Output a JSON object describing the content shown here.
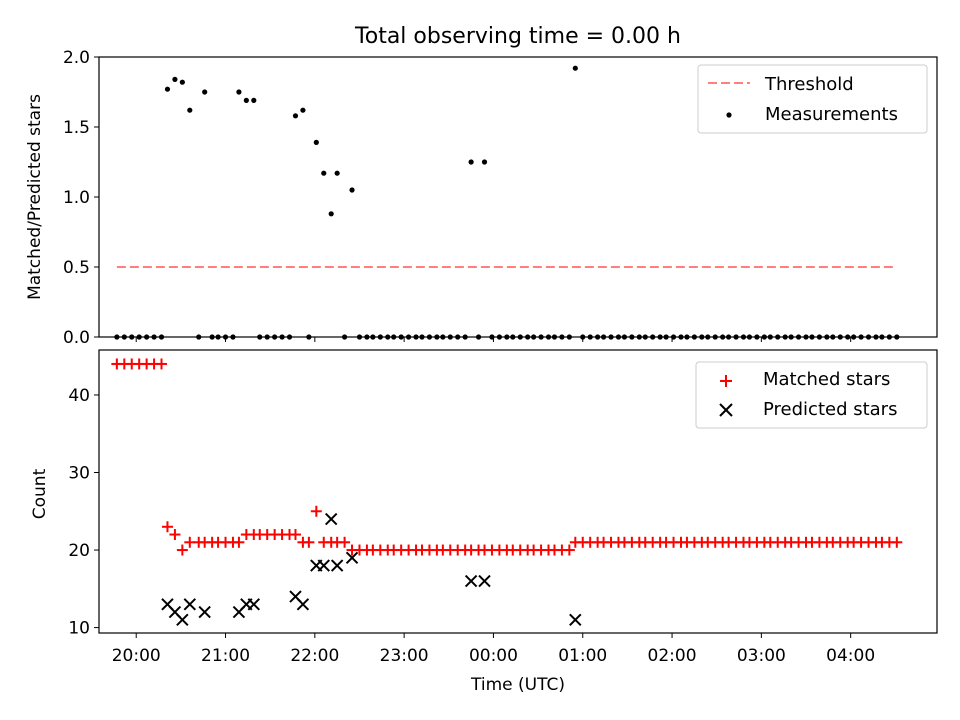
{
  "chart_data": [
    {
      "type": "scatter",
      "title": "Total observing time = 0.00 h",
      "xlabel": "",
      "ylabel": "Matched/Predicted stars",
      "xlim": [
        "19:35",
        "04:58"
      ],
      "ylim": [
        0,
        2.0
      ],
      "yticks": [
        "0.0",
        "0.5",
        "1.0",
        "1.5",
        "2.0"
      ],
      "legend": {
        "position": "top-right",
        "entries": [
          "Threshold",
          "Measurements"
        ]
      },
      "series": [
        {
          "name": "Threshold",
          "style": "dashed-line",
          "color": "#ff7f7f",
          "x": [
            "19:47",
            "04:31"
          ],
          "y": [
            0.5,
            0.5
          ]
        },
        {
          "name": "Measurements",
          "style": "dot",
          "color": "#000000",
          "points": [
            [
              "19:47",
              0
            ],
            [
              "19:52",
              0
            ],
            [
              "19:57",
              0
            ],
            [
              "20:02",
              0
            ],
            [
              "20:07",
              0
            ],
            [
              "20:12",
              0
            ],
            [
              "20:17",
              0
            ],
            [
              "20:21",
              1.77
            ],
            [
              "20:26",
              1.84
            ],
            [
              "20:31",
              1.82
            ],
            [
              "20:36",
              1.62
            ],
            [
              "20:42",
              0
            ],
            [
              "20:46",
              1.75
            ],
            [
              "20:51",
              0
            ],
            [
              "20:55",
              0
            ],
            [
              "21:00",
              0
            ],
            [
              "21:05",
              0
            ],
            [
              "21:09",
              1.75
            ],
            [
              "21:14",
              1.69
            ],
            [
              "21:19",
              1.69
            ],
            [
              "21:23",
              0
            ],
            [
              "21:28",
              0
            ],
            [
              "21:33",
              0
            ],
            [
              "21:38",
              0
            ],
            [
              "21:43",
              0
            ],
            [
              "21:47",
              1.58
            ],
            [
              "21:52",
              1.62
            ],
            [
              "21:56",
              0
            ],
            [
              "22:01",
              1.39
            ],
            [
              "22:06",
              1.17
            ],
            [
              "22:11",
              0.88
            ],
            [
              "22:15",
              1.17
            ],
            [
              "22:20",
              0
            ],
            [
              "22:25",
              1.05
            ],
            [
              "22:30",
              0
            ],
            [
              "22:35",
              0
            ],
            [
              "22:39",
              0
            ],
            [
              "22:44",
              0
            ],
            [
              "22:49",
              0
            ],
            [
              "22:53",
              0
            ],
            [
              "22:58",
              0
            ],
            [
              "23:03",
              0
            ],
            [
              "23:08",
              0
            ],
            [
              "23:12",
              0
            ],
            [
              "23:17",
              0
            ],
            [
              "23:22",
              0
            ],
            [
              "23:26",
              0
            ],
            [
              "23:31",
              0
            ],
            [
              "23:36",
              0
            ],
            [
              "23:41",
              0
            ],
            [
              "23:45",
              1.25
            ],
            [
              "23:50",
              0
            ],
            [
              "23:54",
              1.25
            ],
            [
              "23:59",
              0
            ],
            [
              "00:04",
              0
            ],
            [
              "00:09",
              0
            ],
            [
              "00:13",
              0
            ],
            [
              "00:18",
              0
            ],
            [
              "00:23",
              0
            ],
            [
              "00:27",
              0
            ],
            [
              "00:32",
              0
            ],
            [
              "00:37",
              0
            ],
            [
              "00:41",
              0
            ],
            [
              "00:46",
              0
            ],
            [
              "00:51",
              0
            ],
            [
              "00:55",
              1.92
            ],
            [
              "01:00",
              0
            ],
            [
              "01:05",
              0
            ],
            [
              "01:10",
              0
            ],
            [
              "01:14",
              0
            ],
            [
              "01:19",
              0
            ],
            [
              "01:24",
              0
            ],
            [
              "01:28",
              0
            ],
            [
              "01:33",
              0
            ],
            [
              "01:38",
              0
            ],
            [
              "01:42",
              0
            ],
            [
              "01:47",
              0
            ],
            [
              "01:52",
              0
            ],
            [
              "01:56",
              0
            ],
            [
              "02:01",
              0
            ],
            [
              "02:06",
              0
            ],
            [
              "02:10",
              0
            ],
            [
              "02:15",
              0
            ],
            [
              "02:20",
              0
            ],
            [
              "02:24",
              0
            ],
            [
              "02:29",
              0
            ],
            [
              "02:34",
              0
            ],
            [
              "02:38",
              0
            ],
            [
              "02:43",
              0
            ],
            [
              "02:48",
              0
            ],
            [
              "02:52",
              0
            ],
            [
              "02:57",
              0
            ],
            [
              "03:02",
              0
            ],
            [
              "03:06",
              0
            ],
            [
              "03:11",
              0
            ],
            [
              "03:16",
              0
            ],
            [
              "03:20",
              0
            ],
            [
              "03:25",
              0
            ],
            [
              "03:30",
              0
            ],
            [
              "03:34",
              0
            ],
            [
              "03:39",
              0
            ],
            [
              "03:44",
              0
            ],
            [
              "03:48",
              0
            ],
            [
              "03:53",
              0
            ],
            [
              "03:58",
              0
            ],
            [
              "04:02",
              0
            ],
            [
              "04:07",
              0
            ],
            [
              "04:12",
              0
            ],
            [
              "04:17",
              0
            ],
            [
              "04:21",
              0
            ],
            [
              "04:26",
              0
            ],
            [
              "04:31",
              0
            ]
          ]
        }
      ]
    },
    {
      "type": "scatter",
      "title": "",
      "xlabel": "Time (UTC)",
      "ylabel": "Count",
      "xlim": [
        "19:35",
        "04:58"
      ],
      "ylim": [
        9.3,
        45.8
      ],
      "xticks": [
        "20:00",
        "21:00",
        "22:00",
        "23:00",
        "00:00",
        "01:00",
        "02:00",
        "03:00",
        "04:00"
      ],
      "yticks": [
        "10",
        "20",
        "30",
        "40"
      ],
      "legend": {
        "position": "top-right",
        "entries": [
          "Matched stars",
          "Predicted stars"
        ]
      },
      "series": [
        {
          "name": "Matched stars",
          "marker": "plus",
          "color": "#ff0000",
          "points": [
            [
              "19:47",
              44
            ],
            [
              "19:52",
              44
            ],
            [
              "19:57",
              44
            ],
            [
              "20:02",
              44
            ],
            [
              "20:07",
              44
            ],
            [
              "20:12",
              44
            ],
            [
              "20:17",
              44
            ],
            [
              "20:21",
              23
            ],
            [
              "20:26",
              22
            ],
            [
              "20:31",
              20
            ],
            [
              "20:36",
              21
            ],
            [
              "20:42",
              21
            ],
            [
              "20:46",
              21
            ],
            [
              "20:51",
              21
            ],
            [
              "20:55",
              21
            ],
            [
              "21:00",
              21
            ],
            [
              "21:05",
              21
            ],
            [
              "21:09",
              21
            ],
            [
              "21:14",
              22
            ],
            [
              "21:19",
              22
            ],
            [
              "21:23",
              22
            ],
            [
              "21:28",
              22
            ],
            [
              "21:33",
              22
            ],
            [
              "21:38",
              22
            ],
            [
              "21:43",
              22
            ],
            [
              "21:47",
              22
            ],
            [
              "21:52",
              21
            ],
            [
              "21:56",
              21
            ],
            [
              "22:01",
              25
            ],
            [
              "22:06",
              21
            ],
            [
              "22:11",
              21
            ],
            [
              "22:15",
              21
            ],
            [
              "22:20",
              21
            ],
            [
              "22:25",
              20
            ],
            [
              "22:30",
              20
            ],
            [
              "22:35",
              20
            ],
            [
              "22:39",
              20
            ],
            [
              "22:44",
              20
            ],
            [
              "22:49",
              20
            ],
            [
              "22:53",
              20
            ],
            [
              "22:58",
              20
            ],
            [
              "23:03",
              20
            ],
            [
              "23:08",
              20
            ],
            [
              "23:12",
              20
            ],
            [
              "23:17",
              20
            ],
            [
              "23:22",
              20
            ],
            [
              "23:26",
              20
            ],
            [
              "23:31",
              20
            ],
            [
              "23:36",
              20
            ],
            [
              "23:41",
              20
            ],
            [
              "23:45",
              20
            ],
            [
              "23:50",
              20
            ],
            [
              "23:54",
              20
            ],
            [
              "23:59",
              20
            ],
            [
              "00:04",
              20
            ],
            [
              "00:09",
              20
            ],
            [
              "00:13",
              20
            ],
            [
              "00:18",
              20
            ],
            [
              "00:23",
              20
            ],
            [
              "00:27",
              20
            ],
            [
              "00:32",
              20
            ],
            [
              "00:37",
              20
            ],
            [
              "00:41",
              20
            ],
            [
              "00:46",
              20
            ],
            [
              "00:51",
              20
            ],
            [
              "00:55",
              21
            ],
            [
              "01:00",
              21
            ],
            [
              "01:05",
              21
            ],
            [
              "01:10",
              21
            ],
            [
              "01:14",
              21
            ],
            [
              "01:19",
              21
            ],
            [
              "01:24",
              21
            ],
            [
              "01:28",
              21
            ],
            [
              "01:33",
              21
            ],
            [
              "01:38",
              21
            ],
            [
              "01:42",
              21
            ],
            [
              "01:47",
              21
            ],
            [
              "01:52",
              21
            ],
            [
              "01:56",
              21
            ],
            [
              "02:01",
              21
            ],
            [
              "02:06",
              21
            ],
            [
              "02:10",
              21
            ],
            [
              "02:15",
              21
            ],
            [
              "02:20",
              21
            ],
            [
              "02:24",
              21
            ],
            [
              "02:29",
              21
            ],
            [
              "02:34",
              21
            ],
            [
              "02:38",
              21
            ],
            [
              "02:43",
              21
            ],
            [
              "02:48",
              21
            ],
            [
              "02:52",
              21
            ],
            [
              "02:57",
              21
            ],
            [
              "03:02",
              21
            ],
            [
              "03:06",
              21
            ],
            [
              "03:11",
              21
            ],
            [
              "03:16",
              21
            ],
            [
              "03:20",
              21
            ],
            [
              "03:25",
              21
            ],
            [
              "03:30",
              21
            ],
            [
              "03:34",
              21
            ],
            [
              "03:39",
              21
            ],
            [
              "03:44",
              21
            ],
            [
              "03:48",
              21
            ],
            [
              "03:53",
              21
            ],
            [
              "03:58",
              21
            ],
            [
              "04:02",
              21
            ],
            [
              "04:07",
              21
            ],
            [
              "04:12",
              21
            ],
            [
              "04:17",
              21
            ],
            [
              "04:21",
              21
            ],
            [
              "04:26",
              21
            ],
            [
              "04:31",
              21
            ]
          ]
        },
        {
          "name": "Predicted stars",
          "marker": "x",
          "color": "#000000",
          "points": [
            [
              "20:21",
              13
            ],
            [
              "20:26",
              12
            ],
            [
              "20:31",
              11
            ],
            [
              "20:36",
              13
            ],
            [
              "20:46",
              12
            ],
            [
              "21:09",
              12
            ],
            [
              "21:14",
              13
            ],
            [
              "21:19",
              13
            ],
            [
              "21:47",
              14
            ],
            [
              "21:52",
              13
            ],
            [
              "22:01",
              18
            ],
            [
              "22:06",
              18
            ],
            [
              "22:11",
              24
            ],
            [
              "22:15",
              18
            ],
            [
              "22:25",
              19
            ],
            [
              "23:45",
              16
            ],
            [
              "23:54",
              16
            ],
            [
              "00:55",
              11
            ]
          ]
        }
      ]
    }
  ]
}
